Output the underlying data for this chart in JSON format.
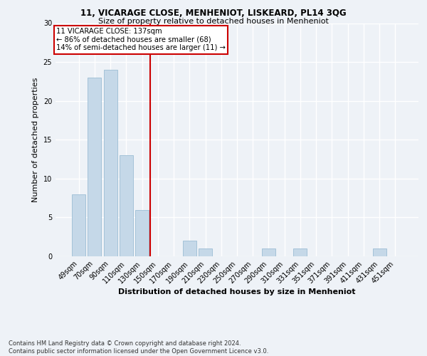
{
  "title1": "11, VICARAGE CLOSE, MENHENIOT, LISKEARD, PL14 3QG",
  "title2": "Size of property relative to detached houses in Menheniot",
  "xlabel": "Distribution of detached houses by size in Menheniot",
  "ylabel": "Number of detached properties",
  "categories": [
    "49sqm",
    "70sqm",
    "90sqm",
    "110sqm",
    "130sqm",
    "150sqm",
    "170sqm",
    "190sqm",
    "210sqm",
    "230sqm",
    "250sqm",
    "270sqm",
    "290sqm",
    "310sqm",
    "331sqm",
    "351sqm",
    "371sqm",
    "391sqm",
    "411sqm",
    "431sqm",
    "451sqm"
  ],
  "values": [
    8,
    23,
    24,
    13,
    6,
    0,
    0,
    2,
    1,
    0,
    0,
    0,
    1,
    0,
    1,
    0,
    0,
    0,
    0,
    1,
    0
  ],
  "bar_color": "#c5d8e8",
  "bar_edgecolor": "#9bbdd4",
  "vline_x": 4.5,
  "vline_color": "#cc0000",
  "annotation_text": "11 VICARAGE CLOSE: 137sqm\n← 86% of detached houses are smaller (68)\n14% of semi-detached houses are larger (11) →",
  "annotation_box_edgecolor": "#cc0000",
  "ylim": [
    0,
    30
  ],
  "yticks": [
    0,
    5,
    10,
    15,
    20,
    25,
    30
  ],
  "footer": "Contains HM Land Registry data © Crown copyright and database right 2024.\nContains public sector information licensed under the Open Government Licence v3.0.",
  "bg_color": "#eef2f7",
  "plot_bg_color": "#eef2f7",
  "grid_color": "#ffffff"
}
